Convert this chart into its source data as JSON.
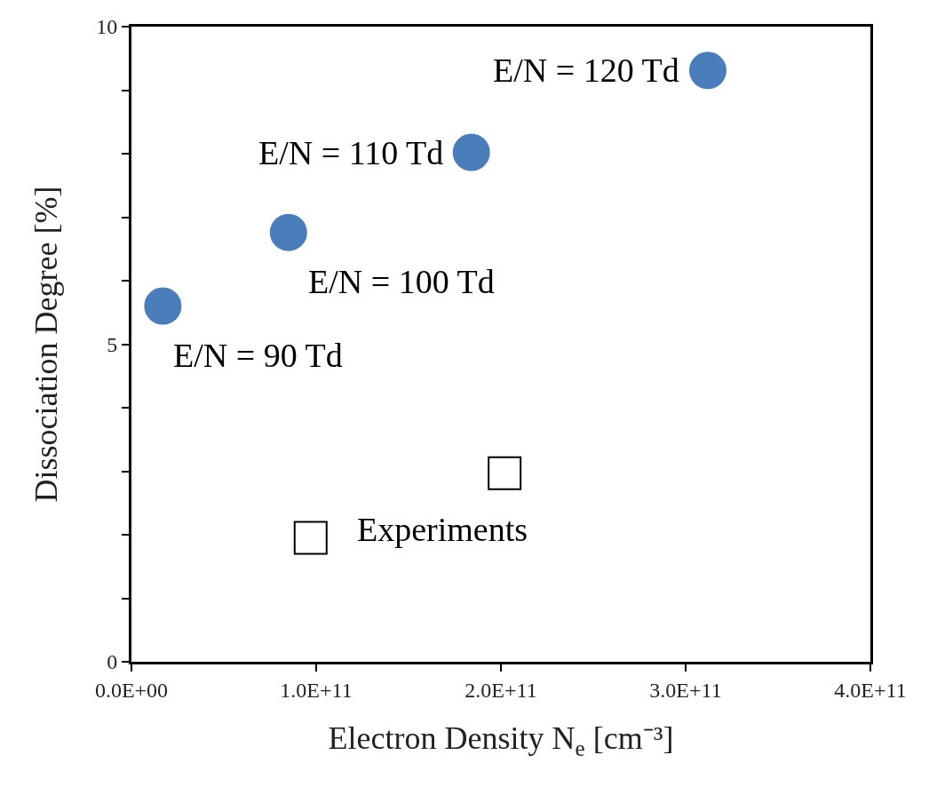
{
  "chart_data": {
    "type": "scatter",
    "xlabel": "Electron Density N$_{e}$ [cm⁻³]",
    "ylabel": "Dissociation Degree [%]",
    "series": [
      {
        "color": "#4a7ebb",
        "marker": "circle",
        "x": [
          17000000000.0,
          85000000000.0,
          184000000000.0,
          312000000000.0
        ],
        "values": [
          5.6,
          6.76,
          8.02,
          9.31
        ]
      },
      {
        "color": "#000000",
        "marker": "square",
        "x": [
          97000000000.0,
          202000000000.0
        ],
        "values": [
          1.95,
          2.97
        ]
      }
    ],
    "annotations": [
      {
        "text": "E/N = 90 Td",
        "x": 17000000000.0,
        "y": 5.6
      },
      {
        "text": "E/N = 100 Td",
        "x": 85000000000.0,
        "y": 6.76
      },
      {
        "text": "E/N = 110 Td",
        "x": 184000000000.0,
        "y": 8.02
      },
      {
        "text": "E/N = 120 Td",
        "x": 312000000000.0,
        "y": 9.31
      },
      {
        "text": "Experiments",
        "x": 97000000000.0,
        "y": 1.95
      }
    ],
    "xlim": [
      0,
      400000000000.0
    ],
    "xticks": [
      {
        "value": 0,
        "label": "0.0E+00"
      },
      {
        "value": 100000000000.0,
        "label": "1.0E+11"
      },
      {
        "value": 200000000000.0,
        "label": "2.0E+11"
      },
      {
        "value": 300000000000.0,
        "label": "3.0E+11"
      },
      {
        "value": 400000000000.0,
        "label": "4.0E+11"
      }
    ],
    "ylim": [
      0,
      10
    ],
    "yticks": [
      0,
      {
        "value": 1,
        "label": null
      },
      {
        "value": 2,
        "label": null
      },
      {
        "value": 3,
        "label": null
      },
      {
        "value": 4,
        "label": null
      },
      5,
      {
        "value": 6,
        "label": null
      },
      {
        "value": 7,
        "label": null
      },
      {
        "value": 8,
        "label": null
      },
      {
        "value": 9,
        "label": null
      },
      10
    ],
    "tick_labels": "xy"
  }
}
